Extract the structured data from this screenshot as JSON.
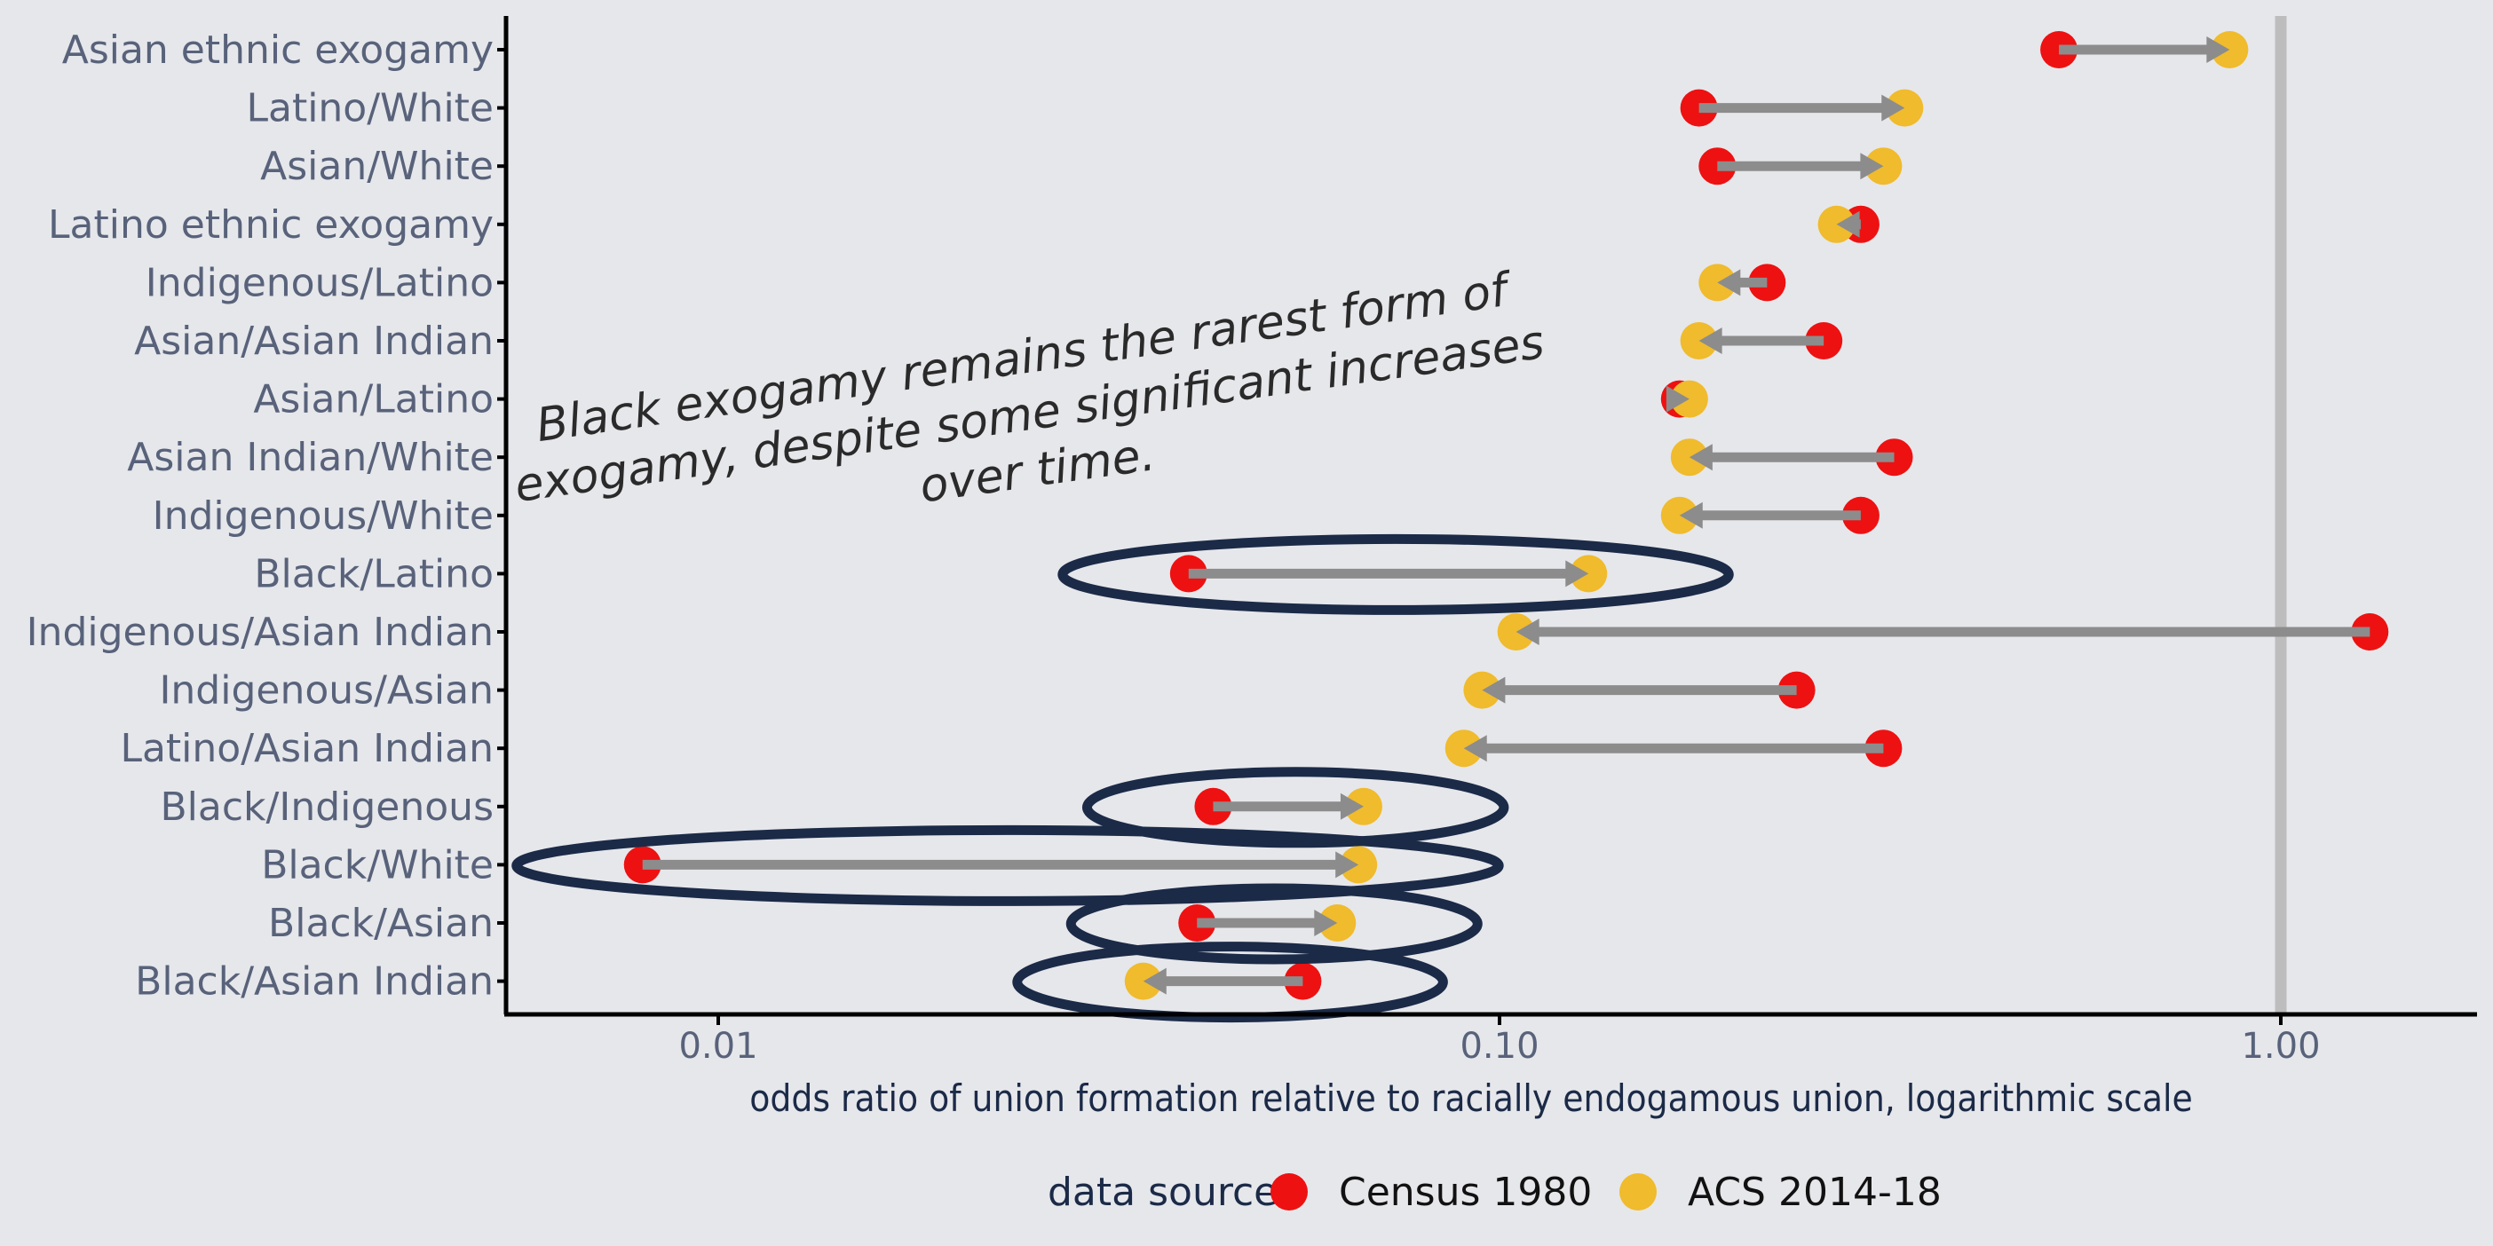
{
  "chart_data": {
    "type": "dumbbell",
    "xlabel": "odds ratio of union formation relative to racially endogamous union, logarithmic scale",
    "x_scale": "log",
    "xlim": [
      0.005,
      1.75
    ],
    "x_ticks": [
      {
        "value": 0.01,
        "label": "0.01"
      },
      {
        "value": 0.1,
        "label": "0.10"
      },
      {
        "value": 1.0,
        "label": "1.00"
      }
    ],
    "reference_line": 1.0,
    "legend": {
      "title": "data source",
      "position": "bottom",
      "items": [
        {
          "label": "Census 1980",
          "color": "#ee1111"
        },
        {
          "label": "ACS 2014-18",
          "color": "#f0bb2c"
        }
      ]
    },
    "categories": [
      "Asian ethnic exogamy",
      "Latino/White",
      "Asian/White",
      "Latino ethnic exogamy",
      "Indigenous/Latino",
      "Asian/Asian Indian",
      "Asian/Latino",
      "Asian Indian/White",
      "Indigenous/White",
      "Black/Latino",
      "Indigenous/Asian Indian",
      "Indigenous/Asian",
      "Latino/Asian Indian",
      "Black/Indigenous",
      "Black/White",
      "Black/Asian",
      "Black/Asian Indian"
    ],
    "series": [
      {
        "name": "Census 1980",
        "values": [
          0.52,
          0.18,
          0.19,
          0.29,
          0.22,
          0.26,
          0.17,
          0.32,
          0.29,
          0.04,
          1.3,
          0.24,
          0.31,
          0.043,
          0.008,
          0.041,
          0.056
        ]
      },
      {
        "name": "ACS 2014-18",
        "values": [
          0.86,
          0.33,
          0.31,
          0.27,
          0.19,
          0.18,
          0.175,
          0.175,
          0.17,
          0.13,
          0.105,
          0.095,
          0.09,
          0.067,
          0.066,
          0.062,
          0.035
        ]
      }
    ],
    "highlighted": [
      "Black/Latino",
      "Black/Indigenous",
      "Black/White",
      "Black/Asian",
      "Black/Asian Indian"
    ],
    "annotation": {
      "lines": [
        "Black exogamy remains the rarest form of",
        "exogamy, despite some significant increases",
        "over time."
      ]
    }
  }
}
